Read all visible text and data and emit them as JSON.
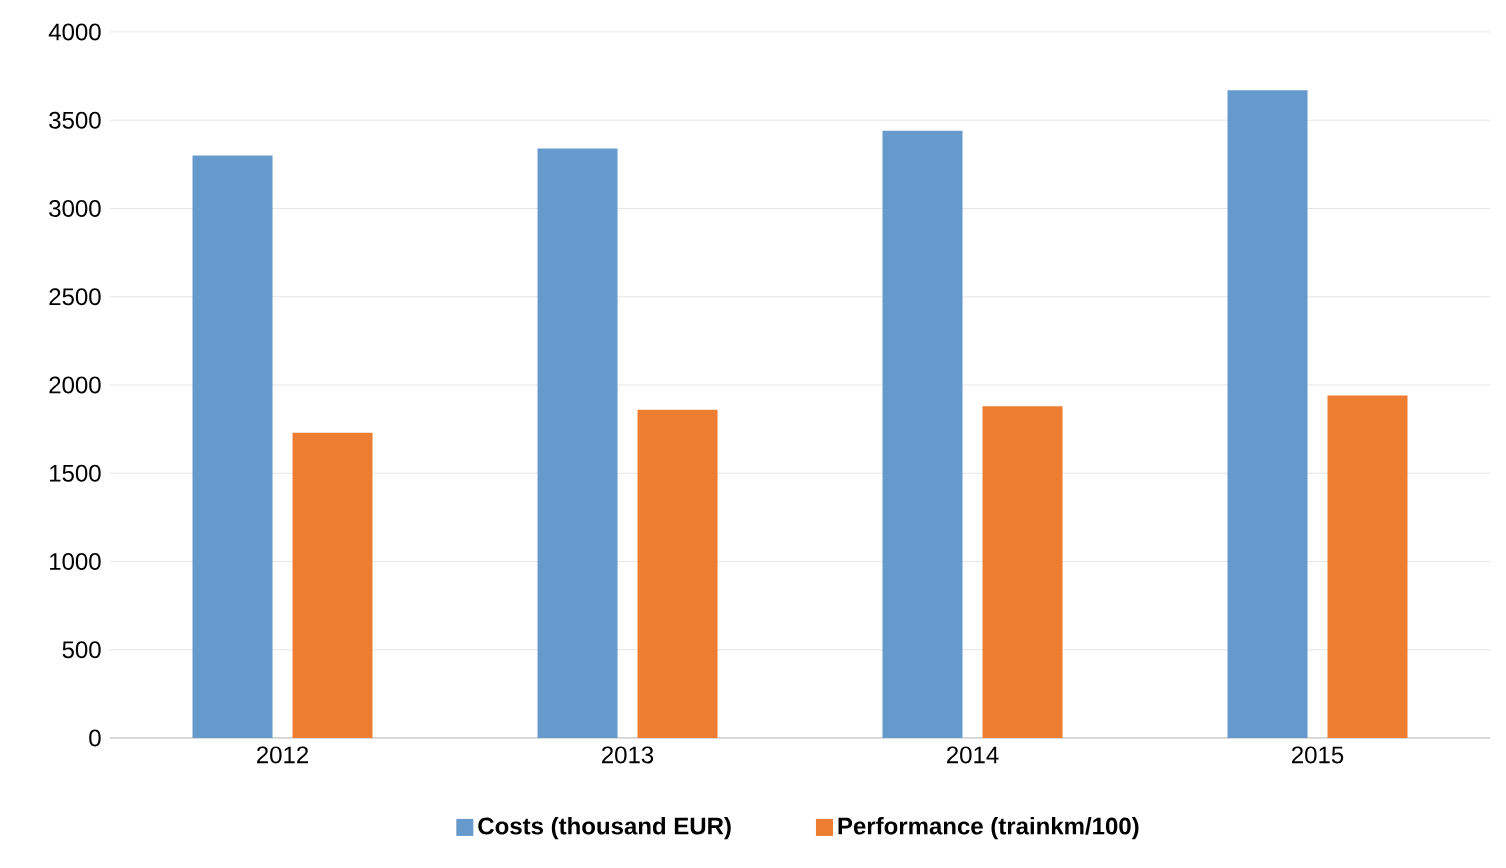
{
  "chart_data": {
    "type": "bar",
    "categories": [
      "2012",
      "2013",
      "2014",
      "2015"
    ],
    "series": [
      {
        "name": "Costs (thousand EUR)",
        "color": "#6699cc",
        "values": [
          3300,
          3340,
          3440,
          3670
        ]
      },
      {
        "name": "Performance (trainkm/100)",
        "color": "#ed7d31",
        "values": [
          1730,
          1860,
          1880,
          1940
        ]
      }
    ],
    "ylim": [
      0,
      4000
    ],
    "yticks": [
      0,
      500,
      1000,
      1500,
      2000,
      2500,
      3000,
      3500,
      4000
    ],
    "grid": "y",
    "legend": "bottom"
  }
}
